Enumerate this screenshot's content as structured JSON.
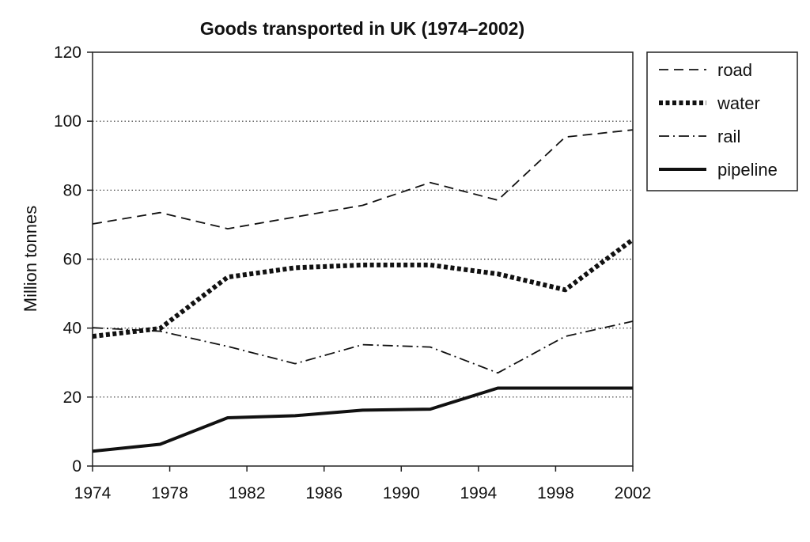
{
  "chart_data": {
    "type": "line",
    "title": "Goods transported in UK (1974–2002)",
    "xlabel": "",
    "ylabel": "Million tonnes",
    "x_ticks": [
      "1974",
      "1978",
      "1982",
      "1986",
      "1990",
      "1994",
      "1998",
      "2002"
    ],
    "y_ticks": [
      "0",
      "20",
      "40",
      "60",
      "80",
      "100",
      "120"
    ],
    "xlim": [
      1974,
      2002
    ],
    "ylim": [
      0,
      120
    ],
    "grid": "horizontal dotted",
    "legend_position": "top-right, outside plot",
    "series": [
      {
        "name": "road",
        "style": "dashed",
        "points": [
          [
            1974,
            70.2
          ],
          [
            1977.5,
            73.5
          ],
          [
            1981,
            68.8
          ],
          [
            1988,
            75.6
          ],
          [
            1991.5,
            82.2
          ],
          [
            1995,
            77.1
          ],
          [
            1998.5,
            95.4
          ],
          [
            2002,
            97.5
          ]
        ]
      },
      {
        "name": "water",
        "style": "dotted-thick",
        "points": [
          [
            1974,
            37.6
          ],
          [
            1977.5,
            39.9
          ],
          [
            1981,
            54.8
          ],
          [
            1984.5,
            57.5
          ],
          [
            1988,
            58.3
          ],
          [
            1991.5,
            58.3
          ],
          [
            1995,
            55.7
          ],
          [
            1998.5,
            51.1
          ],
          [
            2002,
            65.7
          ]
        ]
      },
      {
        "name": "rail",
        "style": "dash-dot",
        "points": [
          [
            1974,
            40.1
          ],
          [
            1977.5,
            39.1
          ],
          [
            1981,
            34.7
          ],
          [
            1984.5,
            29.7
          ],
          [
            1988,
            35.2
          ],
          [
            1991.5,
            34.5
          ],
          [
            1995,
            27.0
          ],
          [
            1998.5,
            37.6
          ],
          [
            2002,
            42.0
          ]
        ]
      },
      {
        "name": "pipeline",
        "style": "solid-thick",
        "points": [
          [
            1974,
            4.3
          ],
          [
            1977.5,
            6.3
          ],
          [
            1981,
            14.0
          ],
          [
            1984.5,
            14.6
          ],
          [
            1988,
            16.2
          ],
          [
            1991.5,
            16.5
          ],
          [
            1995,
            22.6
          ],
          [
            1998.5,
            22.6
          ],
          [
            2002,
            22.6
          ]
        ]
      }
    ]
  }
}
